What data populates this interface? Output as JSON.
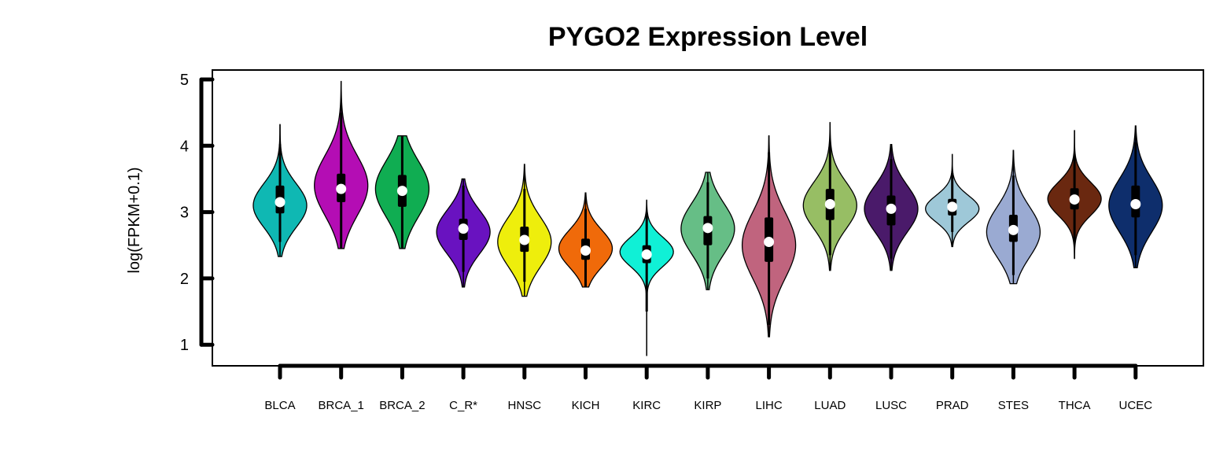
{
  "chart_data": {
    "type": "violin",
    "title": "PYGO2 Expression Level",
    "xlabel": "",
    "ylabel": "log(FPKM+0.1)",
    "ylim": [
      0.62,
      5.15
    ],
    "yticks": [
      1,
      2,
      3,
      4,
      5
    ],
    "grid": false,
    "legend": "none",
    "categories": [
      "BLCA",
      "BRCA_1",
      "BRCA_2",
      "C_R*",
      "HNSC",
      "KICH",
      "KIRC",
      "KIRP",
      "LIHC",
      "LUAD",
      "LUSC",
      "PRAD",
      "STES",
      "THCA",
      "UCEC"
    ],
    "series": [
      {
        "category": "BLCA",
        "color": "#0FB8B3",
        "min": 2.33,
        "max": 4.32,
        "q1": 2.98,
        "median": 3.15,
        "q3": 3.4,
        "whisker_low": 2.55,
        "whisker_high": 4.02,
        "peak": 3.1,
        "spread": 0.33
      },
      {
        "category": "BRCA_1",
        "color": "#B40DB4",
        "min": 2.45,
        "max": 4.97,
        "q1": 3.15,
        "median": 3.35,
        "q3": 3.58,
        "whisker_low": 2.45,
        "whisker_high": 4.5,
        "peak": 3.4,
        "spread": 0.45
      },
      {
        "category": "BRCA_2",
        "color": "#10AD52",
        "min": 2.45,
        "max": 4.15,
        "q1": 3.08,
        "median": 3.32,
        "q3": 3.56,
        "whisker_low": 2.45,
        "whisker_high": 4.15,
        "peak": 3.35,
        "spread": 0.42
      },
      {
        "category": "C_R*",
        "color": "#6912C0",
        "min": 1.87,
        "max": 3.5,
        "q1": 2.58,
        "median": 2.75,
        "q3": 2.9,
        "whisker_low": 2.1,
        "whisker_high": 3.4,
        "peak": 2.7,
        "spread": 0.33
      },
      {
        "category": "HNSC",
        "color": "#EEEE0C",
        "min": 1.73,
        "max": 3.72,
        "q1": 2.4,
        "median": 2.58,
        "q3": 2.78,
        "whisker_low": 1.95,
        "whisker_high": 3.35,
        "peak": 2.55,
        "spread": 0.37
      },
      {
        "category": "KICH",
        "color": "#F06A0A",
        "min": 1.87,
        "max": 3.29,
        "q1": 2.28,
        "median": 2.42,
        "q3": 2.6,
        "whisker_low": 1.87,
        "whisker_high": 3.05,
        "peak": 2.45,
        "spread": 0.28
      },
      {
        "category": "KIRC",
        "color": "#10F0D6",
        "min": 0.83,
        "max": 3.18,
        "q1": 2.23,
        "median": 2.36,
        "q3": 2.5,
        "whisker_low": 1.5,
        "whisker_high": 2.95,
        "peak": 2.4,
        "spread": 0.22
      },
      {
        "category": "KIRP",
        "color": "#66BE86",
        "min": 1.83,
        "max": 3.6,
        "q1": 2.5,
        "median": 2.76,
        "q3": 2.94,
        "whisker_low": 2.0,
        "whisker_high": 3.45,
        "peak": 2.75,
        "spread": 0.38
      },
      {
        "category": "LIHC",
        "color": "#C0647E",
        "min": 1.12,
        "max": 4.15,
        "q1": 2.25,
        "median": 2.55,
        "q3": 2.92,
        "whisker_low": 1.3,
        "whisker_high": 3.9,
        "peak": 2.5,
        "spread": 0.5
      },
      {
        "category": "LUAD",
        "color": "#97BE64",
        "min": 2.12,
        "max": 4.35,
        "q1": 2.88,
        "median": 3.12,
        "q3": 3.35,
        "whisker_low": 2.35,
        "whisker_high": 4.0,
        "peak": 3.1,
        "spread": 0.35
      },
      {
        "category": "LUSC",
        "color": "#4A1A6A",
        "min": 2.12,
        "max": 4.02,
        "q1": 2.8,
        "median": 3.05,
        "q3": 3.25,
        "whisker_low": 2.3,
        "whisker_high": 3.8,
        "peak": 3.05,
        "spread": 0.35
      },
      {
        "category": "PRAD",
        "color": "#9EC8D8",
        "min": 2.48,
        "max": 3.87,
        "q1": 2.95,
        "median": 3.08,
        "q3": 3.2,
        "whisker_low": 2.7,
        "whisker_high": 3.55,
        "peak": 3.05,
        "spread": 0.2
      },
      {
        "category": "STES",
        "color": "#9AAAD2",
        "min": 1.92,
        "max": 3.93,
        "q1": 2.55,
        "median": 2.73,
        "q3": 2.96,
        "whisker_low": 2.05,
        "whisker_high": 3.55,
        "peak": 2.7,
        "spread": 0.38
      },
      {
        "category": "THCA",
        "color": "#6A2810",
        "min": 2.3,
        "max": 4.23,
        "q1": 3.04,
        "median": 3.19,
        "q3": 3.36,
        "whisker_low": 2.55,
        "whisker_high": 3.85,
        "peak": 3.2,
        "spread": 0.25
      },
      {
        "category": "UCEC",
        "color": "#0E2E6C",
        "min": 2.16,
        "max": 4.3,
        "q1": 2.92,
        "median": 3.12,
        "q3": 3.4,
        "whisker_low": 2.35,
        "whisker_high": 4.05,
        "peak": 3.1,
        "spread": 0.4
      }
    ]
  }
}
